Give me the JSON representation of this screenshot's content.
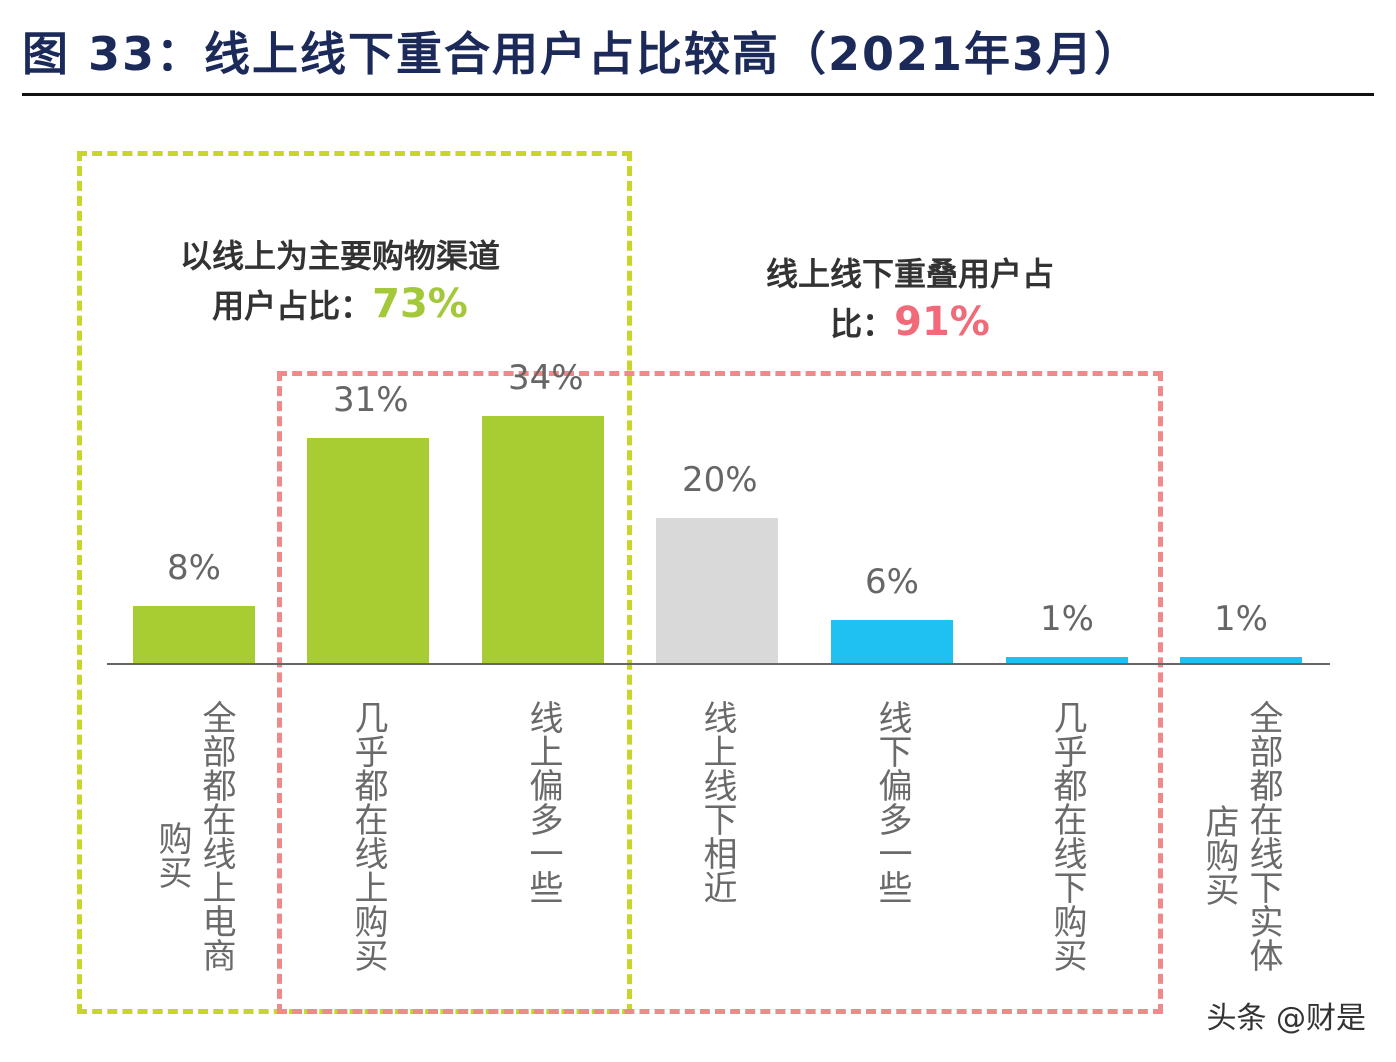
{
  "title": "图 33：线上线下重合用户占比较高（2021年3月）",
  "annotations": {
    "online_main": {
      "text": "以线上为主要购物渠道用户占比：",
      "value": "73%",
      "color": "#a3c93a"
    },
    "overlap": {
      "text": "线上线下重叠用户占比：",
      "value": "91%",
      "color": "#f06a7a"
    }
  },
  "watermark": "头条 @财是",
  "colors": {
    "green": "#a8cd32",
    "gray": "#d9d9d9",
    "blue": "#1ec1f2",
    "green_box": "#c8d62b",
    "red_box": "#f08a8a"
  },
  "chart_data": {
    "type": "bar",
    "categories": [
      "全部都在线上电商购买",
      "几乎都在线上购买",
      "线上偏多一些",
      "线上线下相近",
      "线下偏多一些",
      "几乎都在线下购买",
      "全部都在线下实体店购买"
    ],
    "values": [
      8,
      31,
      34,
      20,
      6,
      1,
      1
    ],
    "value_labels": [
      "8%",
      "31%",
      "34%",
      "20%",
      "6%",
      "1%",
      "1%"
    ],
    "bar_colors": [
      "green",
      "green",
      "green",
      "gray",
      "blue",
      "blue",
      "blue"
    ],
    "unit": "%",
    "ylim": [
      0,
      40
    ],
    "grid": false
  }
}
